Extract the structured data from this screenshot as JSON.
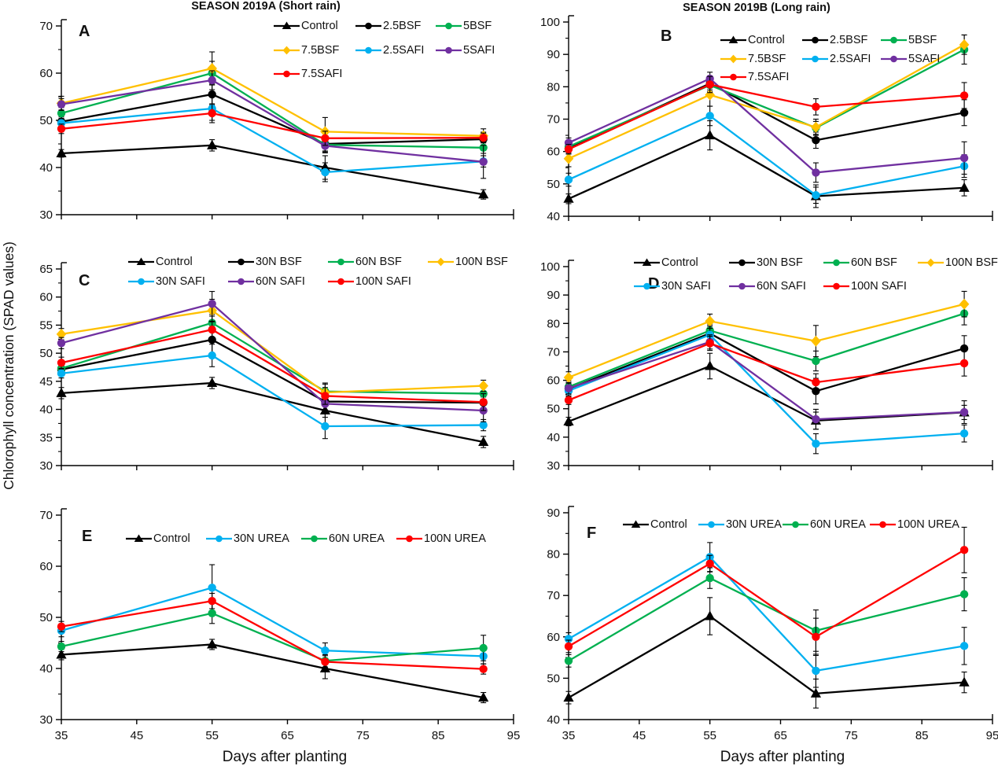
{
  "figure": {
    "y_axis_title": "Chlorophyll concentration (SPAD values)",
    "x_axis_title_left": "Days after planting",
    "x_axis_title_right": "Days after planting",
    "column_titles": [
      "SEASON 2019A (Short rain)",
      "SEASON 2019B (Long rain)"
    ]
  },
  "colors": {
    "black": "#000000",
    "gold": "#FFC000",
    "green": "#00B050",
    "light_blue": "#00B0F0",
    "purple": "#7030A0",
    "red": "#FF0000"
  },
  "chart_data": [
    {
      "type": "line",
      "panel": "A",
      "x": [
        35,
        55,
        70,
        91
      ],
      "xlim": [
        35,
        95
      ],
      "xticks": [
        35,
        45,
        55,
        65,
        75,
        85,
        95
      ],
      "ylim": [
        30,
        70
      ],
      "yticks": [
        30,
        40,
        50,
        60,
        70
      ],
      "ytick_step": 10,
      "y_minor_step": 5,
      "series": [
        {
          "name": "Control",
          "color": "#000000",
          "marker": "triangle",
          "values": [
            43.0,
            44.7,
            40.0,
            34.3
          ],
          "err": [
            0.8,
            1.2,
            2.5,
            1.0
          ]
        },
        {
          "name": "2.5BSF",
          "color": "#000000",
          "marker": "circle",
          "values": [
            49.7,
            55.5,
            45.0,
            46.0
          ],
          "err": [
            1.0,
            2.2,
            1.5,
            1.5
          ]
        },
        {
          "name": "5BSF",
          "color": "#00B050",
          "marker": "circle",
          "values": [
            51.5,
            60.0,
            44.8,
            44.2
          ],
          "err": [
            1.2,
            2.5,
            1.5,
            1.2
          ]
        },
        {
          "name": "7.5BSF",
          "color": "#FFC000",
          "marker": "diamond",
          "values": [
            53.6,
            61.0,
            47.6,
            46.7
          ],
          "err": [
            1.5,
            3.5,
            3.0,
            1.5
          ]
        },
        {
          "name": "2.5SAFI",
          "color": "#00B0F0",
          "marker": "circle",
          "values": [
            49.4,
            52.5,
            39.0,
            41.3
          ],
          "err": [
            1.0,
            2.5,
            2.0,
            1.2
          ]
        },
        {
          "name": "5SAFI",
          "color": "#7030A0",
          "marker": "circle",
          "values": [
            53.4,
            58.5,
            44.6,
            41.2
          ],
          "err": [
            1.2,
            2.0,
            1.5,
            3.5
          ]
        },
        {
          "name": "7.5SAFI",
          "color": "#FF0000",
          "marker": "circle",
          "values": [
            48.2,
            51.5,
            46.2,
            46.3
          ],
          "err": [
            1.0,
            2.0,
            1.5,
            1.0
          ]
        }
      ]
    },
    {
      "type": "line",
      "panel": "B",
      "x": [
        35,
        55,
        70,
        91
      ],
      "xlim": [
        35,
        95
      ],
      "xticks": [
        35,
        45,
        55,
        65,
        75,
        85,
        95
      ],
      "ylim": [
        40,
        100
      ],
      "yticks": [
        40,
        50,
        60,
        70,
        80,
        90,
        100
      ],
      "ytick_step": 10,
      "y_minor_step": 5,
      "series": [
        {
          "name": "Control",
          "color": "#000000",
          "marker": "triangle",
          "values": [
            45.4,
            65.0,
            46.2,
            48.8
          ],
          "err": [
            1.5,
            4.5,
            3.5,
            2.5
          ]
        },
        {
          "name": "2.5BSF",
          "color": "#000000",
          "marker": "circle",
          "values": [
            61.0,
            81.0,
            63.5,
            72.0
          ],
          "err": [
            1.5,
            2.0,
            2.5,
            4.0
          ]
        },
        {
          "name": "5BSF",
          "color": "#00B050",
          "marker": "circle",
          "values": [
            61.5,
            80.5,
            67.3,
            91.5
          ],
          "err": [
            1.5,
            2.0,
            2.0,
            4.5
          ]
        },
        {
          "name": "7.5BSF",
          "color": "#FFC000",
          "marker": "diamond",
          "values": [
            57.8,
            77.5,
            67.5,
            93.0
          ],
          "err": [
            2.5,
            3.5,
            2.5,
            3.0
          ]
        },
        {
          "name": "2.5SAFI",
          "color": "#00B0F0",
          "marker": "circle",
          "values": [
            51.3,
            71.0,
            46.5,
            55.5
          ],
          "err": [
            2.0,
            3.0,
            2.5,
            3.5
          ]
        },
        {
          "name": "5SAFI",
          "color": "#7030A0",
          "marker": "circle",
          "values": [
            62.7,
            82.5,
            53.5,
            58.0
          ],
          "err": [
            1.5,
            2.0,
            3.0,
            5.0
          ]
        },
        {
          "name": "7.5SAFI",
          "color": "#FF0000",
          "marker": "circle",
          "values": [
            60.7,
            80.7,
            73.8,
            77.3
          ],
          "err": [
            1.5,
            2.5,
            2.5,
            4.0
          ]
        }
      ]
    },
    {
      "type": "line",
      "panel": "C",
      "x": [
        35,
        55,
        70,
        91
      ],
      "xlim": [
        35,
        95
      ],
      "xticks": [
        35,
        45,
        55,
        65,
        75,
        85,
        95
      ],
      "ylim": [
        30,
        65
      ],
      "yticks": [
        30,
        35,
        40,
        45,
        50,
        55,
        60,
        65
      ],
      "ytick_step": 5,
      "y_minor_step": 2.5,
      "series": [
        {
          "name": "Control",
          "color": "#000000",
          "marker": "triangle",
          "values": [
            42.9,
            44.7,
            39.8,
            34.2
          ],
          "err": [
            1.0,
            1.0,
            1.2,
            1.0
          ]
        },
        {
          "name": "30N BSF",
          "color": "#000000",
          "marker": "circle",
          "values": [
            47.1,
            52.4,
            41.4,
            41.2
          ],
          "err": [
            0.8,
            2.5,
            1.5,
            1.0
          ]
        },
        {
          "name": "60N BSF",
          "color": "#00B050",
          "marker": "circle",
          "values": [
            47.3,
            55.4,
            43.2,
            42.8
          ],
          "err": [
            0.8,
            1.5,
            1.5,
            1.0
          ]
        },
        {
          "name": "100N BSF",
          "color": "#FFC000",
          "marker": "diamond",
          "values": [
            53.4,
            57.6,
            43.0,
            44.2
          ],
          "err": [
            1.0,
            2.0,
            1.5,
            1.0
          ]
        },
        {
          "name": "30N SAFI",
          "color": "#00B0F0",
          "marker": "circle",
          "values": [
            46.4,
            49.6,
            37.0,
            37.2
          ],
          "err": [
            0.8,
            2.0,
            2.2,
            1.0
          ]
        },
        {
          "name": "60N SAFI",
          "color": "#7030A0",
          "marker": "circle",
          "values": [
            51.8,
            58.8,
            41.0,
            39.8
          ],
          "err": [
            1.0,
            2.2,
            1.5,
            2.0
          ]
        },
        {
          "name": "100N SAFI",
          "color": "#FF0000",
          "marker": "circle",
          "values": [
            48.3,
            54.2,
            42.4,
            41.3
          ],
          "err": [
            1.0,
            1.5,
            1.5,
            1.5
          ]
        }
      ]
    },
    {
      "type": "line",
      "panel": "D",
      "x": [
        35,
        55,
        70,
        91
      ],
      "xlim": [
        35,
        95
      ],
      "xticks": [
        35,
        45,
        55,
        65,
        75,
        85,
        95
      ],
      "ylim": [
        30,
        100
      ],
      "yticks": [
        30,
        40,
        50,
        60,
        70,
        80,
        90,
        100
      ],
      "ytick_step": 10,
      "y_minor_step": 5,
      "series": [
        {
          "name": "Control",
          "color": "#000000",
          "marker": "triangle",
          "values": [
            45.5,
            65.0,
            45.8,
            48.7
          ],
          "err": [
            1.5,
            4.5,
            3.0,
            2.5
          ]
        },
        {
          "name": "30N BSF",
          "color": "#000000",
          "marker": "circle",
          "values": [
            57.0,
            76.5,
            56.2,
            71.2
          ],
          "err": [
            2.0,
            3.0,
            4.5,
            4.5
          ]
        },
        {
          "name": "60N BSF",
          "color": "#00B050",
          "marker": "circle",
          "values": [
            57.7,
            77.5,
            66.8,
            83.5
          ],
          "err": [
            2.0,
            2.5,
            3.5,
            4.0
          ]
        },
        {
          "name": "100N BSF",
          "color": "#FFC000",
          "marker": "diamond",
          "values": [
            61.0,
            80.8,
            73.8,
            86.8
          ],
          "err": [
            2.0,
            2.5,
            5.5,
            4.5
          ]
        },
        {
          "name": "30N SAFI",
          "color": "#00B0F0",
          "marker": "circle",
          "values": [
            56.3,
            76.0,
            37.7,
            41.3
          ],
          "err": [
            2.0,
            3.0,
            3.5,
            3.0
          ]
        },
        {
          "name": "60N SAFI",
          "color": "#7030A0",
          "marker": "circle",
          "values": [
            57.2,
            73.5,
            46.3,
            48.8
          ],
          "err": [
            2.0,
            2.5,
            3.5,
            4.0
          ]
        },
        {
          "name": "100N SAFI",
          "color": "#FF0000",
          "marker": "circle",
          "values": [
            53.0,
            73.0,
            59.3,
            66.0
          ],
          "err": [
            1.5,
            2.5,
            3.0,
            4.5
          ]
        }
      ]
    },
    {
      "type": "line",
      "panel": "E",
      "x": [
        35,
        55,
        70,
        91
      ],
      "xlim": [
        35,
        95
      ],
      "xticks": [
        35,
        45,
        55,
        65,
        75,
        85,
        95
      ],
      "ylim": [
        30,
        70
      ],
      "yticks": [
        30,
        40,
        50,
        60,
        70
      ],
      "ytick_step": 10,
      "y_minor_step": 5,
      "series": [
        {
          "name": "Control",
          "color": "#000000",
          "marker": "triangle",
          "values": [
            42.7,
            44.7,
            40.0,
            34.3
          ],
          "err": [
            1.0,
            1.0,
            2.0,
            1.0
          ]
        },
        {
          "name": "30N UREA",
          "color": "#00B0F0",
          "marker": "circle",
          "values": [
            47.4,
            55.8,
            43.5,
            42.4
          ],
          "err": [
            1.2,
            4.5,
            1.5,
            1.5
          ]
        },
        {
          "name": "60N UREA",
          "color": "#00B050",
          "marker": "circle",
          "values": [
            44.3,
            50.8,
            41.5,
            44.0
          ],
          "err": [
            1.0,
            2.0,
            1.2,
            2.5
          ]
        },
        {
          "name": "100N UREA",
          "color": "#FF0000",
          "marker": "circle",
          "values": [
            48.2,
            53.2,
            41.3,
            39.9
          ],
          "err": [
            1.0,
            1.5,
            1.2,
            1.0
          ]
        }
      ]
    },
    {
      "type": "line",
      "panel": "F",
      "x": [
        35,
        55,
        70,
        91
      ],
      "xlim": [
        35,
        95
      ],
      "xticks": [
        35,
        45,
        55,
        65,
        75,
        85,
        95
      ],
      "ylim": [
        40,
        90
      ],
      "yticks": [
        40,
        50,
        60,
        70,
        80,
        90
      ],
      "ytick_step": 10,
      "y_minor_step": 5,
      "series": [
        {
          "name": "Control",
          "color": "#000000",
          "marker": "triangle",
          "values": [
            45.3,
            65.0,
            46.3,
            49.0
          ],
          "err": [
            1.5,
            4.5,
            3.5,
            2.5
          ]
        },
        {
          "name": "30N UREA",
          "color": "#00B0F0",
          "marker": "circle",
          "values": [
            59.5,
            79.3,
            51.8,
            57.8
          ],
          "err": [
            1.5,
            3.5,
            4.0,
            4.5
          ]
        },
        {
          "name": "60N UREA",
          "color": "#00B050",
          "marker": "circle",
          "values": [
            54.2,
            74.2,
            61.5,
            70.3
          ],
          "err": [
            1.5,
            2.5,
            5.0,
            4.0
          ]
        },
        {
          "name": "100N UREA",
          "color": "#FF0000",
          "marker": "circle",
          "values": [
            57.7,
            77.7,
            60.0,
            81.0
          ],
          "err": [
            1.5,
            2.0,
            4.5,
            5.5
          ]
        }
      ]
    }
  ]
}
